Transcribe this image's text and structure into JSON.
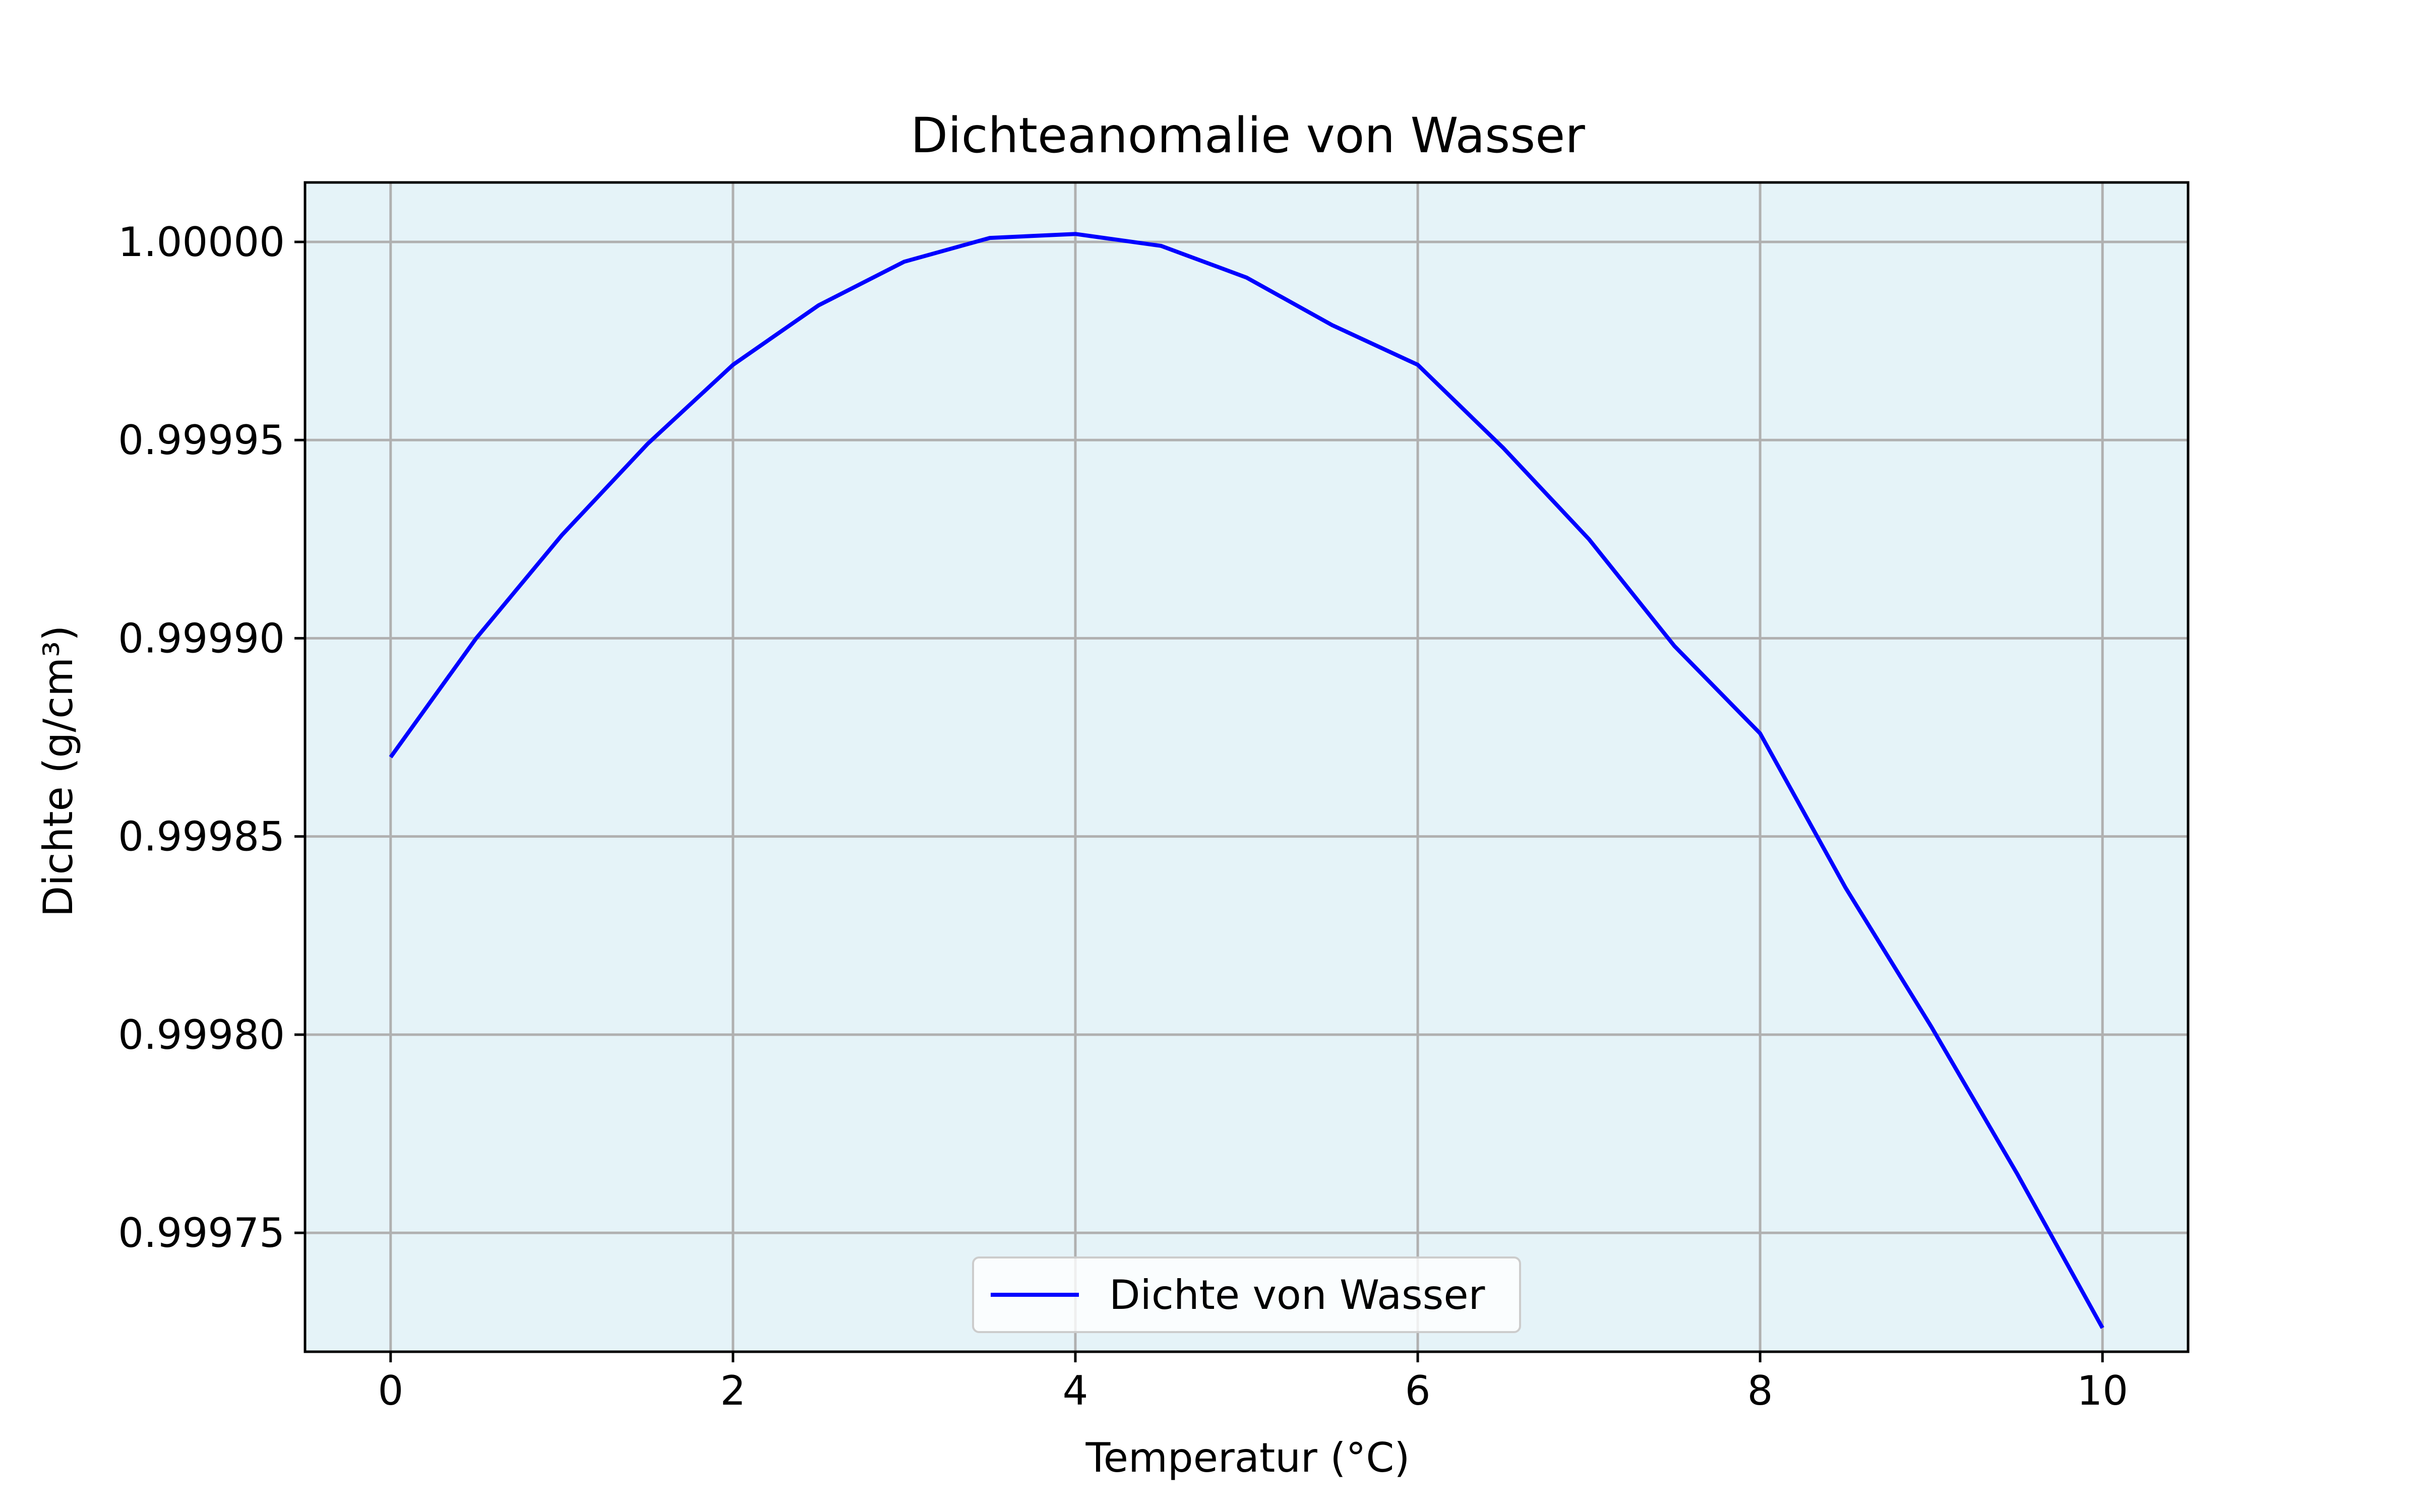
{
  "chart_data": {
    "type": "line",
    "title": "Dichteanomalie von Wasser",
    "xlabel": "Temperatur (°C)",
    "ylabel": "Dichte (g/cm³)",
    "xlim": [
      -0.5,
      10.5
    ],
    "ylim": [
      0.99972,
      1.000015
    ],
    "xticks": [
      0,
      2,
      4,
      6,
      8,
      10
    ],
    "xtick_labels": [
      "0",
      "2",
      "4",
      "6",
      "8",
      "10"
    ],
    "yticks": [
      0.99975,
      0.9998,
      0.99985,
      0.9999,
      0.99995,
      1.0
    ],
    "ytick_labels": [
      "0.99975",
      "0.99980",
      "0.99985",
      "0.99990",
      "0.99995",
      "1.00000"
    ],
    "grid": true,
    "legend_position": "lower center",
    "colors": {
      "line": "#0000ff",
      "plot_background": "#e5f3f8",
      "grid": "#b0b0b0"
    },
    "series": [
      {
        "name": "Dichte von Wasser",
        "x": [
          0,
          0.5,
          1,
          1.5,
          2,
          2.5,
          3,
          3.5,
          4,
          4.5,
          5,
          5.5,
          6,
          6.5,
          7,
          7.5,
          8,
          8.5,
          9,
          9.5,
          10
        ],
        "y": [
          0.99987,
          0.9999,
          0.999926,
          0.999949,
          0.999969,
          0.999984,
          0.999995,
          1.000001,
          1.000002,
          0.999999,
          0.999991,
          0.999979,
          0.999969,
          0.999948,
          0.999925,
          0.999898,
          0.999876,
          0.999837,
          0.999802,
          0.999765,
          0.999726
        ]
      }
    ]
  }
}
